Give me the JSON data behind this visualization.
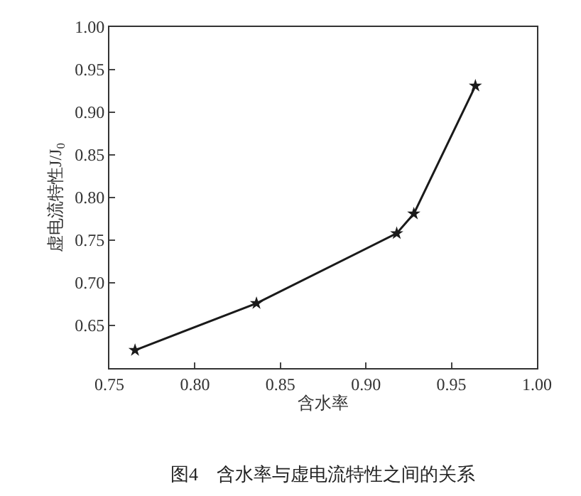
{
  "chart_data": {
    "type": "line",
    "xlabel": "含水率",
    "ylabel": "虚电流特性J/J$_{0}$",
    "annotations": [
      "图4　含水率与虚电流特性之间的关系"
    ],
    "x": [
      0.765,
      0.836,
      0.918,
      0.928,
      0.964
    ],
    "series": [
      {
        "color": "#1a1a1a",
        "values": [
          0.621,
          0.676,
          0.758,
          0.781,
          0.931
        ]
      }
    ],
    "xlim": [
      0.75,
      1.0
    ],
    "xticks": [
      0.75,
      {
        "value": 0.8,
        "label": "0.80"
      },
      0.85,
      {
        "value": 0.9,
        "label": "0.90"
      },
      0.95,
      {
        "value": 1.0,
        "label": "1.00"
      }
    ],
    "ylim": [
      0.6,
      1.0
    ],
    "yticks": [
      0.65,
      {
        "value": 0.7,
        "label": "0.70"
      },
      0.75,
      {
        "value": 0.8,
        "label": "0.80"
      },
      0.85,
      {
        "value": 0.9,
        "label": "0.90"
      },
      0.95,
      {
        "value": 1.0,
        "label": "1.00"
      }
    ],
    "marker": "star",
    "line_style": "solid"
  }
}
